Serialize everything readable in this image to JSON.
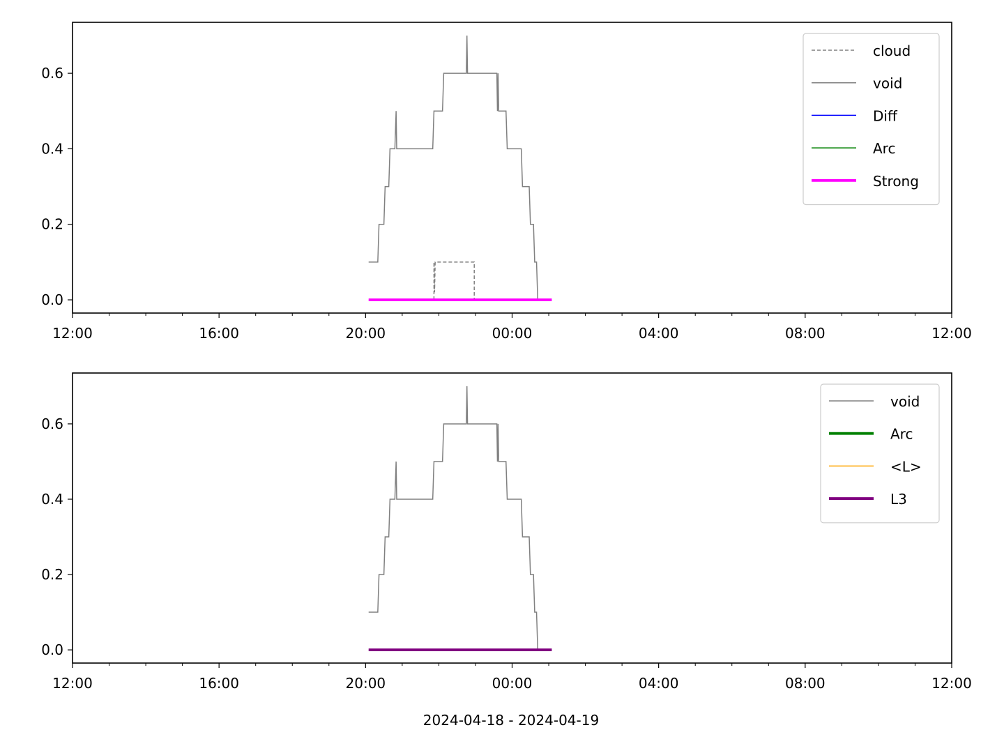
{
  "figure": {
    "xlabel": "2024-04-18 - 2024-04-19"
  },
  "chart_data": [
    {
      "type": "line",
      "x_type": "time",
      "xlim": [
        "2024-04-18 12:00",
        "2024-04-19 12:00"
      ],
      "ylim": [
        -0.035,
        0.735
      ],
      "x_ticks": [
        "12:00",
        "16:00",
        "20:00",
        "00:00",
        "04:00",
        "08:00",
        "12:00"
      ],
      "y_ticks": [
        "0.0",
        "0.2",
        "0.4",
        "0.6"
      ],
      "y_tick_values": [
        0.0,
        0.2,
        0.4,
        0.6
      ],
      "grid": false,
      "legend_position": "top-right",
      "series": [
        {
          "name": "cloud",
          "color": "#808080",
          "style": "dashed",
          "width": 1,
          "points": [
            [
              "2024-04-18 21:52",
              0.0
            ],
            [
              "2024-04-18 21:52",
              0.1
            ],
            [
              "2024-04-18 21:53",
              0.02
            ],
            [
              "2024-04-18 21:54",
              0.1
            ],
            [
              "2024-04-18 22:58",
              0.1
            ],
            [
              "2024-04-18 22:58",
              0.0
            ]
          ]
        },
        {
          "name": "void",
          "color": "#808080",
          "style": "solid",
          "width": 1,
          "points": [
            [
              "2024-04-18 20:05",
              0.1
            ],
            [
              "2024-04-18 20:20",
              0.1
            ],
            [
              "2024-04-18 20:22",
              0.2
            ],
            [
              "2024-04-18 20:30",
              0.2
            ],
            [
              "2024-04-18 20:32",
              0.3
            ],
            [
              "2024-04-18 20:38",
              0.3
            ],
            [
              "2024-04-18 20:40",
              0.4
            ],
            [
              "2024-04-18 20:48",
              0.4
            ],
            [
              "2024-04-18 20:50",
              0.5
            ],
            [
              "2024-04-18 20:51",
              0.4
            ],
            [
              "2024-04-18 21:50",
              0.4
            ],
            [
              "2024-04-18 21:52",
              0.5
            ],
            [
              "2024-04-18 22:06",
              0.5
            ],
            [
              "2024-04-18 22:08",
              0.6
            ],
            [
              "2024-04-18 22:45",
              0.6
            ],
            [
              "2024-04-18 22:46",
              0.7
            ],
            [
              "2024-04-18 22:47",
              0.6
            ],
            [
              "2024-04-18 23:35",
              0.6
            ],
            [
              "2024-04-18 23:36",
              0.5
            ],
            [
              "2024-04-18 23:37",
              0.6
            ],
            [
              "2024-04-18 23:38",
              0.5
            ],
            [
              "2024-04-18 23:50",
              0.5
            ],
            [
              "2024-04-18 23:52",
              0.4
            ],
            [
              "2024-04-19 00:15",
              0.4
            ],
            [
              "2024-04-19 00:17",
              0.3
            ],
            [
              "2024-04-19 00:28",
              0.3
            ],
            [
              "2024-04-19 00:30",
              0.2
            ],
            [
              "2024-04-19 00:35",
              0.2
            ],
            [
              "2024-04-19 00:37",
              0.1
            ],
            [
              "2024-04-19 00:40",
              0.1
            ],
            [
              "2024-04-19 00:42",
              0.0
            ]
          ]
        },
        {
          "name": "Diff",
          "color": "#0000ff",
          "style": "solid",
          "width": 1,
          "points": []
        },
        {
          "name": "Arc",
          "color": "#008000",
          "style": "solid",
          "width": 1,
          "points": []
        },
        {
          "name": "Strong",
          "color": "#ff00ff",
          "style": "solid",
          "width": 2.6,
          "points": [
            [
              "2024-04-18 20:05",
              0.0
            ],
            [
              "2024-04-19 01:05",
              0.0
            ]
          ]
        }
      ]
    },
    {
      "type": "line",
      "x_type": "time",
      "xlim": [
        "2024-04-18 12:00",
        "2024-04-19 12:00"
      ],
      "ylim": [
        -0.035,
        0.735
      ],
      "x_ticks": [
        "12:00",
        "16:00",
        "20:00",
        "00:00",
        "04:00",
        "08:00",
        "12:00"
      ],
      "y_ticks": [
        "0.0",
        "0.2",
        "0.4",
        "0.6"
      ],
      "y_tick_values": [
        0.0,
        0.2,
        0.4,
        0.6
      ],
      "grid": false,
      "legend_position": "top-right",
      "series": [
        {
          "name": "void",
          "color": "#808080",
          "style": "solid",
          "width": 1,
          "points": [
            [
              "2024-04-18 20:05",
              0.1
            ],
            [
              "2024-04-18 20:20",
              0.1
            ],
            [
              "2024-04-18 20:22",
              0.2
            ],
            [
              "2024-04-18 20:30",
              0.2
            ],
            [
              "2024-04-18 20:32",
              0.3
            ],
            [
              "2024-04-18 20:38",
              0.3
            ],
            [
              "2024-04-18 20:40",
              0.4
            ],
            [
              "2024-04-18 20:48",
              0.4
            ],
            [
              "2024-04-18 20:50",
              0.5
            ],
            [
              "2024-04-18 20:51",
              0.4
            ],
            [
              "2024-04-18 21:50",
              0.4
            ],
            [
              "2024-04-18 21:52",
              0.5
            ],
            [
              "2024-04-18 22:06",
              0.5
            ],
            [
              "2024-04-18 22:08",
              0.6
            ],
            [
              "2024-04-18 22:45",
              0.6
            ],
            [
              "2024-04-18 22:46",
              0.7
            ],
            [
              "2024-04-18 22:47",
              0.6
            ],
            [
              "2024-04-18 23:35",
              0.6
            ],
            [
              "2024-04-18 23:36",
              0.5
            ],
            [
              "2024-04-18 23:37",
              0.6
            ],
            [
              "2024-04-18 23:38",
              0.5
            ],
            [
              "2024-04-18 23:50",
              0.5
            ],
            [
              "2024-04-18 23:52",
              0.4
            ],
            [
              "2024-04-19 00:15",
              0.4
            ],
            [
              "2024-04-19 00:17",
              0.3
            ],
            [
              "2024-04-19 00:28",
              0.3
            ],
            [
              "2024-04-19 00:30",
              0.2
            ],
            [
              "2024-04-19 00:35",
              0.2
            ],
            [
              "2024-04-19 00:37",
              0.1
            ],
            [
              "2024-04-19 00:40",
              0.1
            ],
            [
              "2024-04-19 00:42",
              0.0
            ]
          ]
        },
        {
          "name": "Arc",
          "color": "#008000",
          "style": "solid",
          "width": 2.6,
          "points": []
        },
        {
          "name": "<L>",
          "color": "#ffa500",
          "style": "solid",
          "width": 1,
          "points": []
        },
        {
          "name": "L3",
          "color": "#800080",
          "style": "solid",
          "width": 2.6,
          "points": [
            [
              "2024-04-18 20:05",
              0.0
            ],
            [
              "2024-04-19 01:05",
              0.0
            ]
          ]
        }
      ]
    }
  ]
}
